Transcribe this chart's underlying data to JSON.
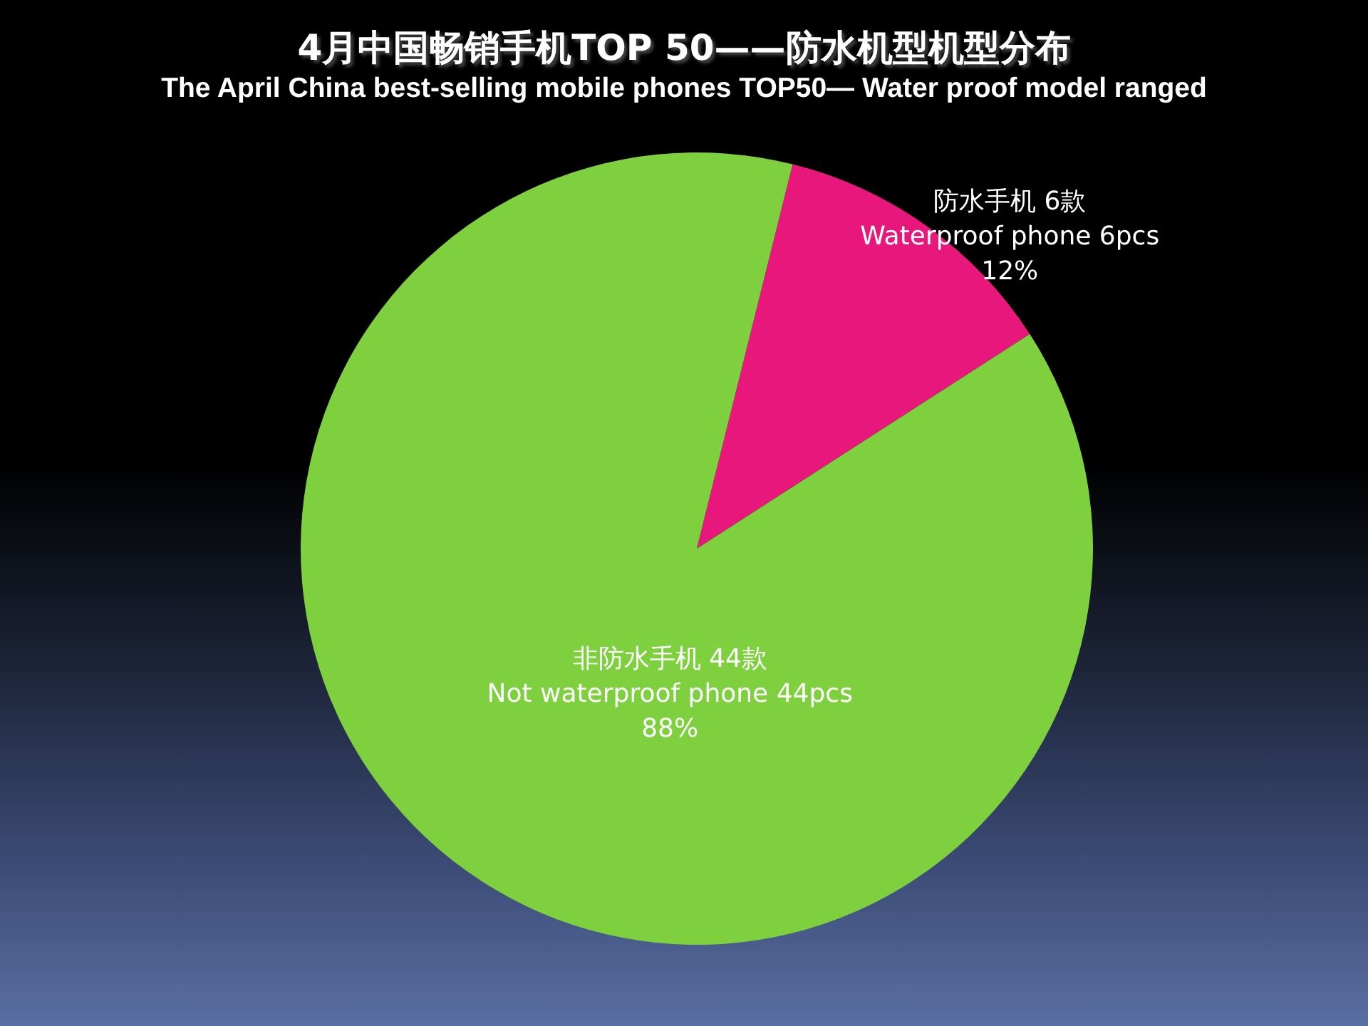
{
  "chart_data": {
    "type": "pie",
    "title": "4月中国畅销手机TOP 50——防水机型机型分布",
    "subtitle": "The April China best-selling mobile phones TOP50— Water proof model ranged",
    "categories": [
      "防水手机 6款\nWaterproof phone 6pcs",
      "非防水手机 44款\nNot waterproof phone 44pcs"
    ],
    "values": [
      12,
      88
    ],
    "colors": [
      "#e8177c",
      "#7ed03f"
    ],
    "value_labels": [
      "12%",
      "88%"
    ]
  }
}
